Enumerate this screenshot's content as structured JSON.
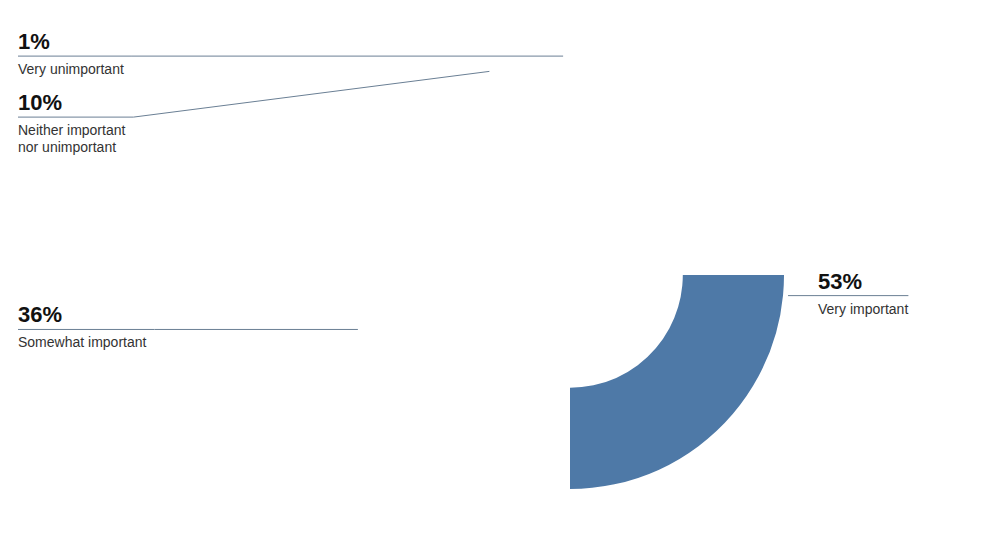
{
  "chart_data": {
    "type": "donut",
    "categories": [
      "Very important",
      "Somewhat important",
      "Neither important\nnor unimportant",
      "Very unimportant"
    ],
    "values": [
      53,
      36,
      10,
      1
    ],
    "value_labels": [
      "53%",
      "36%",
      "10%",
      "1%"
    ],
    "data_labels": true
  }
}
